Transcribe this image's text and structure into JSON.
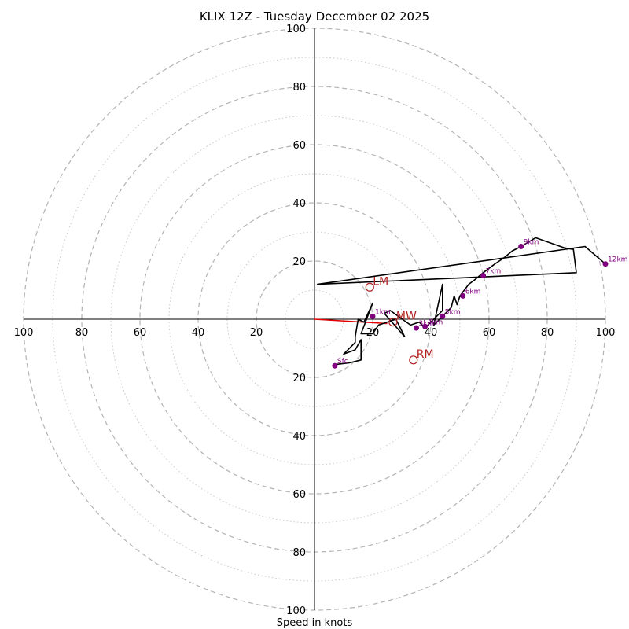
{
  "chart_data": {
    "type": "hodograph",
    "title": "KLIX 12Z - Tuesday December 02 2025",
    "xlabel": "Speed in knots",
    "max_speed": 100,
    "ring_labels_major": [
      20,
      40,
      60,
      80,
      100
    ],
    "ring_minor": [
      10,
      30,
      50,
      70,
      90
    ],
    "x_tick_labels": [
      "100",
      "80",
      "60",
      "40",
      "20",
      "20",
      "40",
      "60",
      "80",
      "100"
    ],
    "y_tick_labels": [
      "100",
      "80",
      "60",
      "40",
      "20",
      "20",
      "40",
      "60",
      "80",
      "100"
    ],
    "trace": [
      [
        7,
        -16
      ],
      [
        7.5,
        -15.5
      ],
      [
        12,
        -15
      ],
      [
        16,
        -14
      ],
      [
        16,
        -7
      ],
      [
        14,
        -10.5
      ],
      [
        10,
        -12
      ],
      [
        14,
        -8
      ],
      [
        14,
        -6
      ],
      [
        15,
        0
      ],
      [
        17,
        -1
      ],
      [
        20,
        5.5
      ],
      [
        16,
        -5
      ],
      [
        20,
        -5
      ],
      [
        22,
        -2
      ],
      [
        28,
        0
      ],
      [
        31,
        -6
      ],
      [
        24,
        2
      ],
      [
        26,
        3
      ],
      [
        33,
        -2
      ],
      [
        36,
        -1
      ],
      [
        38,
        -3
      ],
      [
        40,
        -1
      ],
      [
        44,
        3
      ],
      [
        44,
        12
      ],
      [
        41,
        -2
      ],
      [
        44,
        1
      ],
      [
        47,
        4
      ],
      [
        48,
        8
      ],
      [
        49,
        5
      ],
      [
        50,
        8
      ],
      [
        53,
        12
      ],
      [
        55,
        13.5
      ],
      [
        58,
        16
      ],
      [
        62,
        19
      ],
      [
        65,
        21
      ],
      [
        68,
        23.5
      ],
      [
        71,
        25
      ],
      [
        76,
        28
      ],
      [
        86,
        24.5
      ],
      [
        89,
        24
      ],
      [
        90,
        16
      ],
      [
        1,
        12
      ],
      [
        93,
        25
      ],
      [
        100,
        19
      ]
    ],
    "height_markers": [
      {
        "label": "Sfc",
        "u": 7,
        "v": -16
      },
      {
        "label": "1km",
        "u": 20,
        "v": 1
      },
      {
        "label": "3km",
        "u": 35,
        "v": -3
      },
      {
        "label": "4km",
        "u": 38,
        "v": -2.5
      },
      {
        "label": "5km",
        "u": 44,
        "v": 1
      },
      {
        "label": "6km",
        "u": 51,
        "v": 8
      },
      {
        "label": "7km",
        "u": 58,
        "v": 15
      },
      {
        "label": "9km",
        "u": 71,
        "v": 25
      },
      {
        "label": "12km",
        "u": 100,
        "v": 19
      }
    ],
    "motion_markers": [
      {
        "label": "LM",
        "u": 19,
        "v": 11
      },
      {
        "label": "RM",
        "u": 34,
        "v": -14
      },
      {
        "label": "MW",
        "u": 27,
        "v": -1
      }
    ],
    "shear_vector": {
      "from": [
        0,
        0
      ],
      "to": [
        25,
        -1.5
      ]
    }
  }
}
